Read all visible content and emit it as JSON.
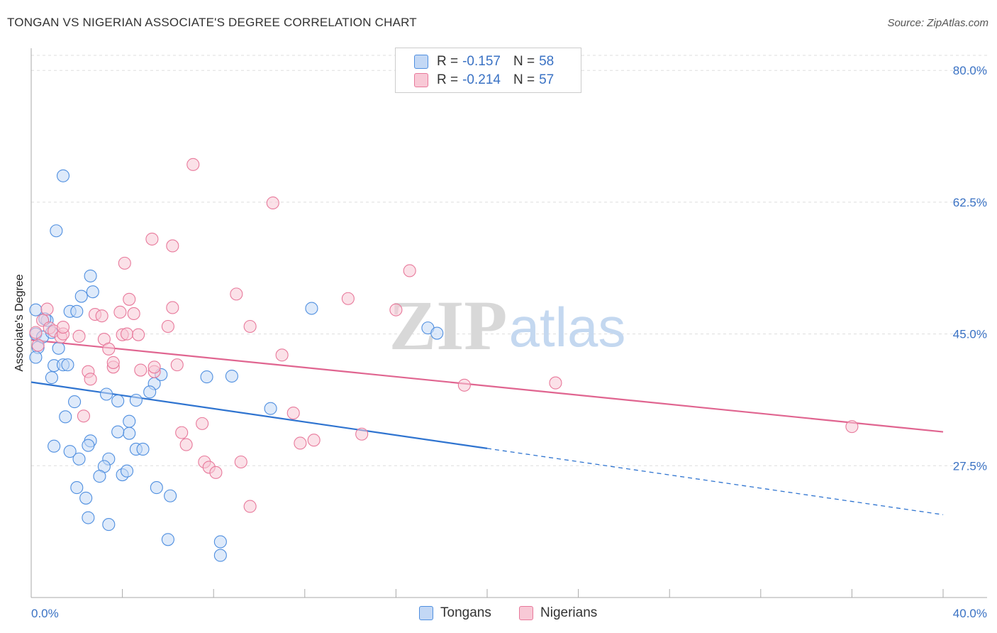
{
  "title": "TONGAN VS NIGERIAN ASSOCIATE'S DEGREE CORRELATION CHART",
  "source": "Source: ZipAtlas.com",
  "watermark": {
    "zip": "ZIP",
    "atlas": "atlas"
  },
  "colors": {
    "tongan": "#4f8fe0",
    "tongan_fill": "#c3d8f5",
    "tongan_line": "#2f74d0",
    "nigerian": "#e8799b",
    "nigerian_fill": "#f8c9d6",
    "nigerian_line": "#e06590",
    "axis_text": "#3a72c4",
    "grid": "#dddddd"
  },
  "legend": {
    "tongan": {
      "r_label": "R =",
      "r_value": "-0.157",
      "n_label": "N =",
      "n_value": "58"
    },
    "nigerian": {
      "r_label": "R =",
      "r_value": "-0.214",
      "n_label": "N =",
      "n_value": "57"
    }
  },
  "bottom_legend": {
    "tongan": "Tongans",
    "nigerian": "Nigerians"
  },
  "chart_data": {
    "type": "scatter",
    "title": "TONGAN VS NIGERIAN ASSOCIATE'S DEGREE CORRELATION CHART",
    "xlabel": "",
    "ylabel": "Associate's Degree",
    "xlim": [
      0,
      40
    ],
    "ylim": [
      10,
      82
    ],
    "x_tick_labels": [
      "0.0%",
      "40.0%"
    ],
    "y_ticks": [
      80.0,
      62.5,
      45.0,
      27.5
    ],
    "y_tick_labels": [
      "80.0%",
      "62.5%",
      "45.0%",
      "27.5%"
    ],
    "grid": true,
    "series": [
      {
        "name": "Tongans",
        "key": "tongan",
        "points": [
          [
            0.2,
            45.0
          ],
          [
            0.3,
            43.2
          ],
          [
            0.5,
            44.6
          ],
          [
            0.7,
            46.8
          ],
          [
            0.9,
            45.2
          ],
          [
            1.4,
            66.0
          ],
          [
            1.1,
            58.7
          ],
          [
            0.2,
            48.2
          ],
          [
            0.6,
            47.0
          ],
          [
            1.2,
            43.1
          ],
          [
            1.7,
            48.0
          ],
          [
            1.0,
            40.8
          ],
          [
            1.4,
            40.9
          ],
          [
            1.6,
            40.9
          ],
          [
            2.2,
            50.0
          ],
          [
            2.6,
            52.7
          ],
          [
            2.7,
            50.6
          ],
          [
            2.0,
            48.0
          ],
          [
            0.2,
            41.9
          ],
          [
            0.9,
            39.2
          ],
          [
            1.9,
            36.0
          ],
          [
            1.5,
            34.0
          ],
          [
            3.3,
            37.0
          ],
          [
            3.8,
            36.1
          ],
          [
            4.3,
            33.4
          ],
          [
            5.4,
            38.4
          ],
          [
            5.2,
            37.3
          ],
          [
            4.6,
            36.2
          ],
          [
            7.7,
            39.3
          ],
          [
            8.8,
            39.4
          ],
          [
            10.5,
            35.1
          ],
          [
            12.3,
            48.4
          ],
          [
            17.4,
            45.8
          ],
          [
            17.8,
            45.1
          ],
          [
            4.3,
            31.8
          ],
          [
            3.8,
            32.0
          ],
          [
            2.6,
            30.8
          ],
          [
            1.7,
            29.4
          ],
          [
            2.5,
            30.2
          ],
          [
            2.1,
            28.4
          ],
          [
            3.4,
            28.4
          ],
          [
            4.6,
            29.7
          ],
          [
            4.9,
            29.7
          ],
          [
            3.2,
            27.4
          ],
          [
            3.0,
            26.1
          ],
          [
            4.0,
            26.3
          ],
          [
            4.2,
            26.8
          ],
          [
            2.0,
            24.6
          ],
          [
            2.4,
            23.2
          ],
          [
            5.5,
            24.6
          ],
          [
            6.1,
            23.5
          ],
          [
            2.5,
            20.6
          ],
          [
            3.4,
            19.7
          ],
          [
            6.0,
            17.7
          ],
          [
            8.3,
            17.4
          ],
          [
            8.3,
            15.6
          ],
          [
            1.0,
            30.1
          ],
          [
            5.7,
            39.6
          ]
        ],
        "trend": {
          "x0": 0,
          "y0": 38.6,
          "x1": 20,
          "y1": 29.8,
          "dash_to_x": 40,
          "dash_to_y": 21.0
        }
      },
      {
        "name": "Nigerians",
        "key": "nigerian",
        "points": [
          [
            0.2,
            45.2
          ],
          [
            0.3,
            43.5
          ],
          [
            0.5,
            46.8
          ],
          [
            0.7,
            48.3
          ],
          [
            0.8,
            45.8
          ],
          [
            1.0,
            45.4
          ],
          [
            1.3,
            44.6
          ],
          [
            1.4,
            45.0
          ],
          [
            1.4,
            45.9
          ],
          [
            2.1,
            44.7
          ],
          [
            2.8,
            47.6
          ],
          [
            3.1,
            47.4
          ],
          [
            3.2,
            44.3
          ],
          [
            3.4,
            43.0
          ],
          [
            3.6,
            40.6
          ],
          [
            3.6,
            41.2
          ],
          [
            3.9,
            47.9
          ],
          [
            4.0,
            44.9
          ],
          [
            4.1,
            54.4
          ],
          [
            4.3,
            49.6
          ],
          [
            4.2,
            45.0
          ],
          [
            4.5,
            47.7
          ],
          [
            4.7,
            44.9
          ],
          [
            4.8,
            40.2
          ],
          [
            5.4,
            40.0
          ],
          [
            5.4,
            40.6
          ],
          [
            6.0,
            46.0
          ],
          [
            6.2,
            48.5
          ],
          [
            6.4,
            40.9
          ],
          [
            5.3,
            57.6
          ],
          [
            6.2,
            56.7
          ],
          [
            7.1,
            67.5
          ],
          [
            7.6,
            28.0
          ],
          [
            7.8,
            27.3
          ],
          [
            6.6,
            31.9
          ],
          [
            6.8,
            30.3
          ],
          [
            7.5,
            33.1
          ],
          [
            8.1,
            26.6
          ],
          [
            9.2,
            28.0
          ],
          [
            9.0,
            50.3
          ],
          [
            9.6,
            46.0
          ],
          [
            9.6,
            22.1
          ],
          [
            10.6,
            62.4
          ],
          [
            11.0,
            42.2
          ],
          [
            11.5,
            34.5
          ],
          [
            11.8,
            30.5
          ],
          [
            12.4,
            30.9
          ],
          [
            13.9,
            49.7
          ],
          [
            14.5,
            31.7
          ],
          [
            16.0,
            48.2
          ],
          [
            16.6,
            53.4
          ],
          [
            19.0,
            38.2
          ],
          [
            23.0,
            38.5
          ],
          [
            36.0,
            32.7
          ],
          [
            2.3,
            34.1
          ],
          [
            2.5,
            40.0
          ],
          [
            2.6,
            39.0
          ]
        ],
        "trend": {
          "x0": 0,
          "y0": 44.2,
          "x1": 40,
          "y1": 32.0
        }
      }
    ]
  }
}
